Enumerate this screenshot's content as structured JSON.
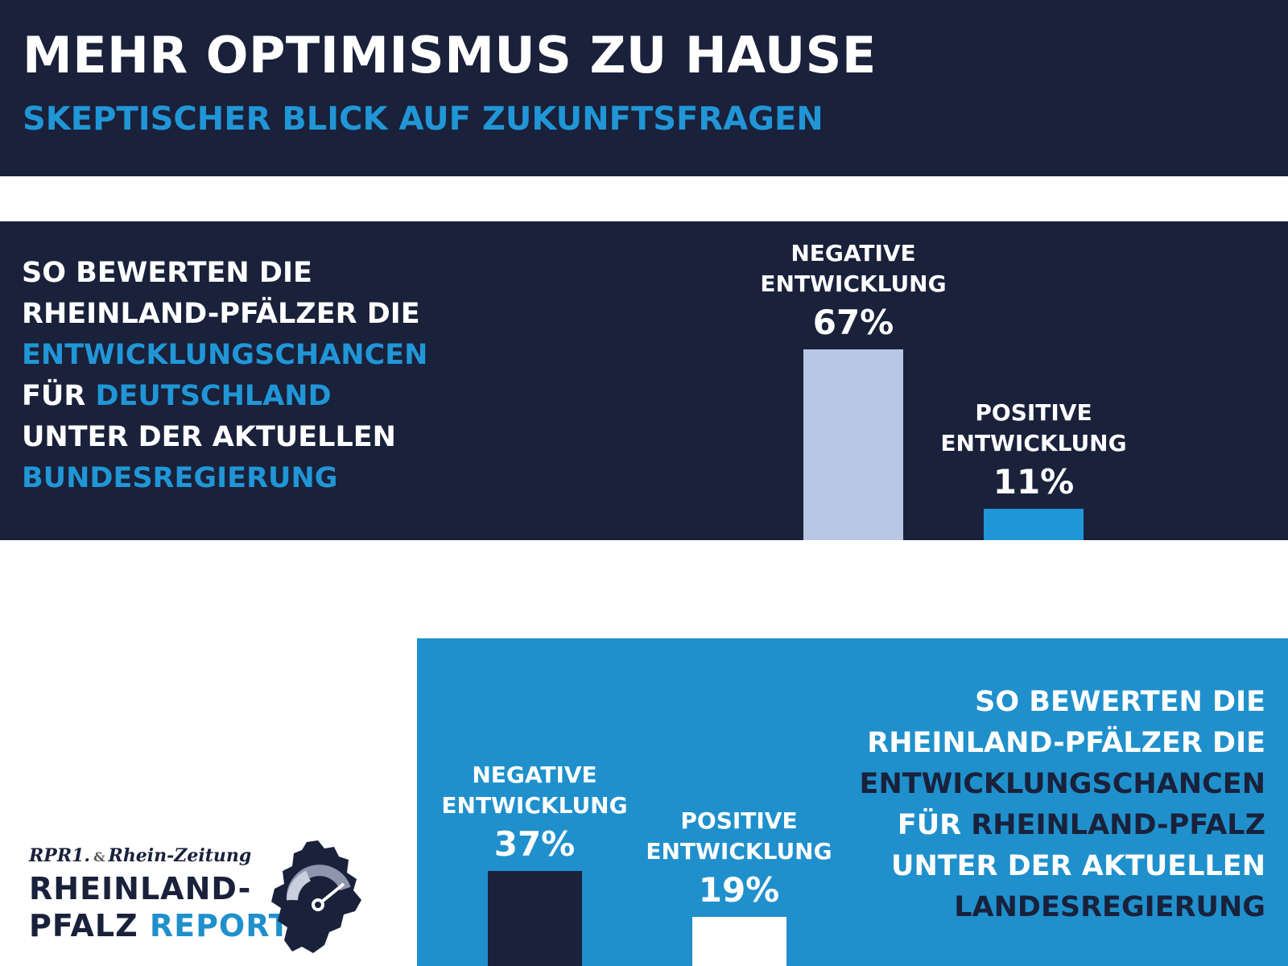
{
  "header": {
    "title": "MEHR OPTIMISMUS ZU HAUSE",
    "subtitle": "SKEPTISCHER BLICK AUF ZUKUNFTSFRAGEN"
  },
  "colors": {
    "navy": "#19213b",
    "accent_blue": "#2196d6",
    "panel_blue": "#1f90cc",
    "bar_light": "#b8c7e6",
    "white": "#ffffff"
  },
  "panel_top": {
    "line1": "SO BEWERTEN DIE",
    "line2": "RHEINLAND-PFÄLZER DIE",
    "line3": "ENTWICKLUNGSCHANCEN",
    "line4a": "FÜR ",
    "line4b": "DEUTSCHLAND",
    "line5": "UNTER DER AKTUELLEN",
    "line6": "BUNDESREGIERUNG"
  },
  "panel_bottom": {
    "line1": "SO BEWERTEN DIE",
    "line2": "RHEINLAND-PFÄLZER DIE",
    "line3": "ENTWICKLUNGSCHANCEN",
    "line4a": "FÜR ",
    "line4b": "RHEINLAND-PFALZ",
    "line5": "UNTER DER AKTUELLEN",
    "line6": "LANDESREGIERUNG"
  },
  "chart_data": [
    {
      "type": "bar",
      "categories": [
        "NEGATIVE ENTWICKLUNG",
        "POSITIVE ENTWICKLUNG"
      ],
      "values": [
        67,
        11
      ],
      "value_labels": [
        "67%",
        "11%"
      ],
      "category_lines": [
        [
          "NEGATIVE",
          "ENTWICKLUNG"
        ],
        [
          "POSITIVE",
          "ENTWICKLUNG"
        ]
      ],
      "bar_colors": [
        "#b8c7e6",
        "#2196d6"
      ],
      "label_color": "#ffffff",
      "ylim": [
        0,
        100
      ],
      "grid": false
    },
    {
      "type": "bar",
      "categories": [
        "NEGATIVE ENTWICKLUNG",
        "POSITIVE ENTWICKLUNG"
      ],
      "values": [
        37,
        19
      ],
      "value_labels": [
        "37%",
        "19%"
      ],
      "category_lines": [
        [
          "NEGATIVE",
          "ENTWICKLUNG"
        ],
        [
          "POSITIVE",
          "ENTWICKLUNG"
        ]
      ],
      "bar_colors": [
        "#19213b",
        "#ffffff"
      ],
      "label_color": "#ffffff",
      "ylim": [
        0,
        100
      ],
      "grid": false
    }
  ],
  "logo": {
    "brand1": "RPR1.",
    "amp": "&",
    "brand2": "Rhein-Zeitung",
    "line1": "RHEINLAND-",
    "line2a": "PFALZ ",
    "line2b": "REPORT"
  }
}
